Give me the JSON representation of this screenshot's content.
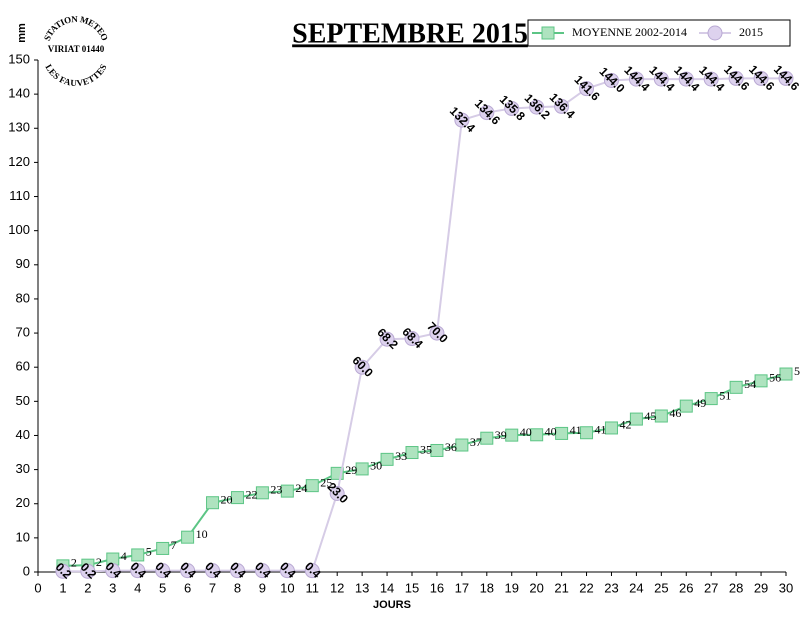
{
  "logo": [
    "STATION METEO",
    "VIRIAT 01440",
    "LES FAUVETTES"
  ],
  "chart_data": {
    "type": "line",
    "title": "SEPTEMBRE 2015",
    "x_label": "JOURS",
    "y_label": "mm",
    "x": [
      1,
      2,
      3,
      4,
      5,
      6,
      7,
      8,
      9,
      10,
      11,
      12,
      13,
      14,
      15,
      16,
      17,
      18,
      19,
      20,
      21,
      22,
      23,
      24,
      25,
      26,
      27,
      28,
      29,
      30
    ],
    "xlim": [
      0,
      30
    ],
    "xticks": [
      0,
      1,
      2,
      3,
      4,
      5,
      6,
      7,
      8,
      9,
      10,
      11,
      12,
      13,
      14,
      15,
      16,
      17,
      18,
      19,
      20,
      21,
      22,
      23,
      24,
      25,
      26,
      27,
      28,
      29,
      30
    ],
    "ylim": [
      0,
      150
    ],
    "yticks": [
      0,
      10,
      20,
      30,
      40,
      50,
      60,
      70,
      80,
      90,
      100,
      110,
      120,
      130,
      140,
      150
    ],
    "grid": false,
    "legend": "top-right",
    "series": [
      {
        "name": "MOYENNE 2002-2014",
        "color": "#5cc585",
        "marker": "square",
        "values": [
          1.8,
          2.0,
          3.8,
          5.0,
          6.9,
          10.2,
          20.3,
          21.8,
          23.2,
          23.7,
          25.3,
          28.9,
          30.2,
          33.0,
          35.0,
          35.6,
          37.2,
          39.2,
          40.1,
          40.2,
          40.6,
          40.8,
          42.2,
          44.8,
          45.7,
          48.6,
          50.8,
          54.1,
          56.0,
          58.0
        ],
        "value_labels": [
          "2",
          "2",
          "4",
          "5",
          "7",
          "10",
          "20",
          "22",
          "23",
          "24",
          "25",
          "29",
          "30",
          "33",
          "35",
          "36",
          "37",
          "39",
          "40",
          "40",
          "41",
          "41",
          "42",
          "45",
          "46",
          "49",
          "51",
          "54",
          "56",
          "58"
        ]
      },
      {
        "name": "2015",
        "color": "#d6cce6",
        "marker": "circle",
        "values": [
          0.2,
          0.2,
          0.4,
          0.4,
          0.4,
          0.4,
          0.4,
          0.4,
          0.4,
          0.4,
          0.4,
          23.0,
          60.0,
          68.2,
          68.4,
          70.0,
          132.4,
          134.6,
          135.8,
          136.2,
          136.4,
          141.6,
          144.0,
          144.4,
          144.4,
          144.4,
          144.4,
          144.6,
          144.6,
          144.6
        ],
        "value_labels": [
          "0.2",
          "0.2",
          "0.4",
          "0.4",
          "0.4",
          "0.4",
          "0.4",
          "0.4",
          "0.4",
          "0.4",
          "0.4",
          "23.0",
          "60.0",
          "68.2",
          "68.4",
          "70.0",
          "132.4",
          "134.6",
          "135.8",
          "136.2",
          "136.4",
          "141.6",
          "144.0",
          "144.4",
          "144.4",
          "144.4",
          "144.4",
          "144.6",
          "144.6",
          "144.6"
        ]
      }
    ]
  }
}
